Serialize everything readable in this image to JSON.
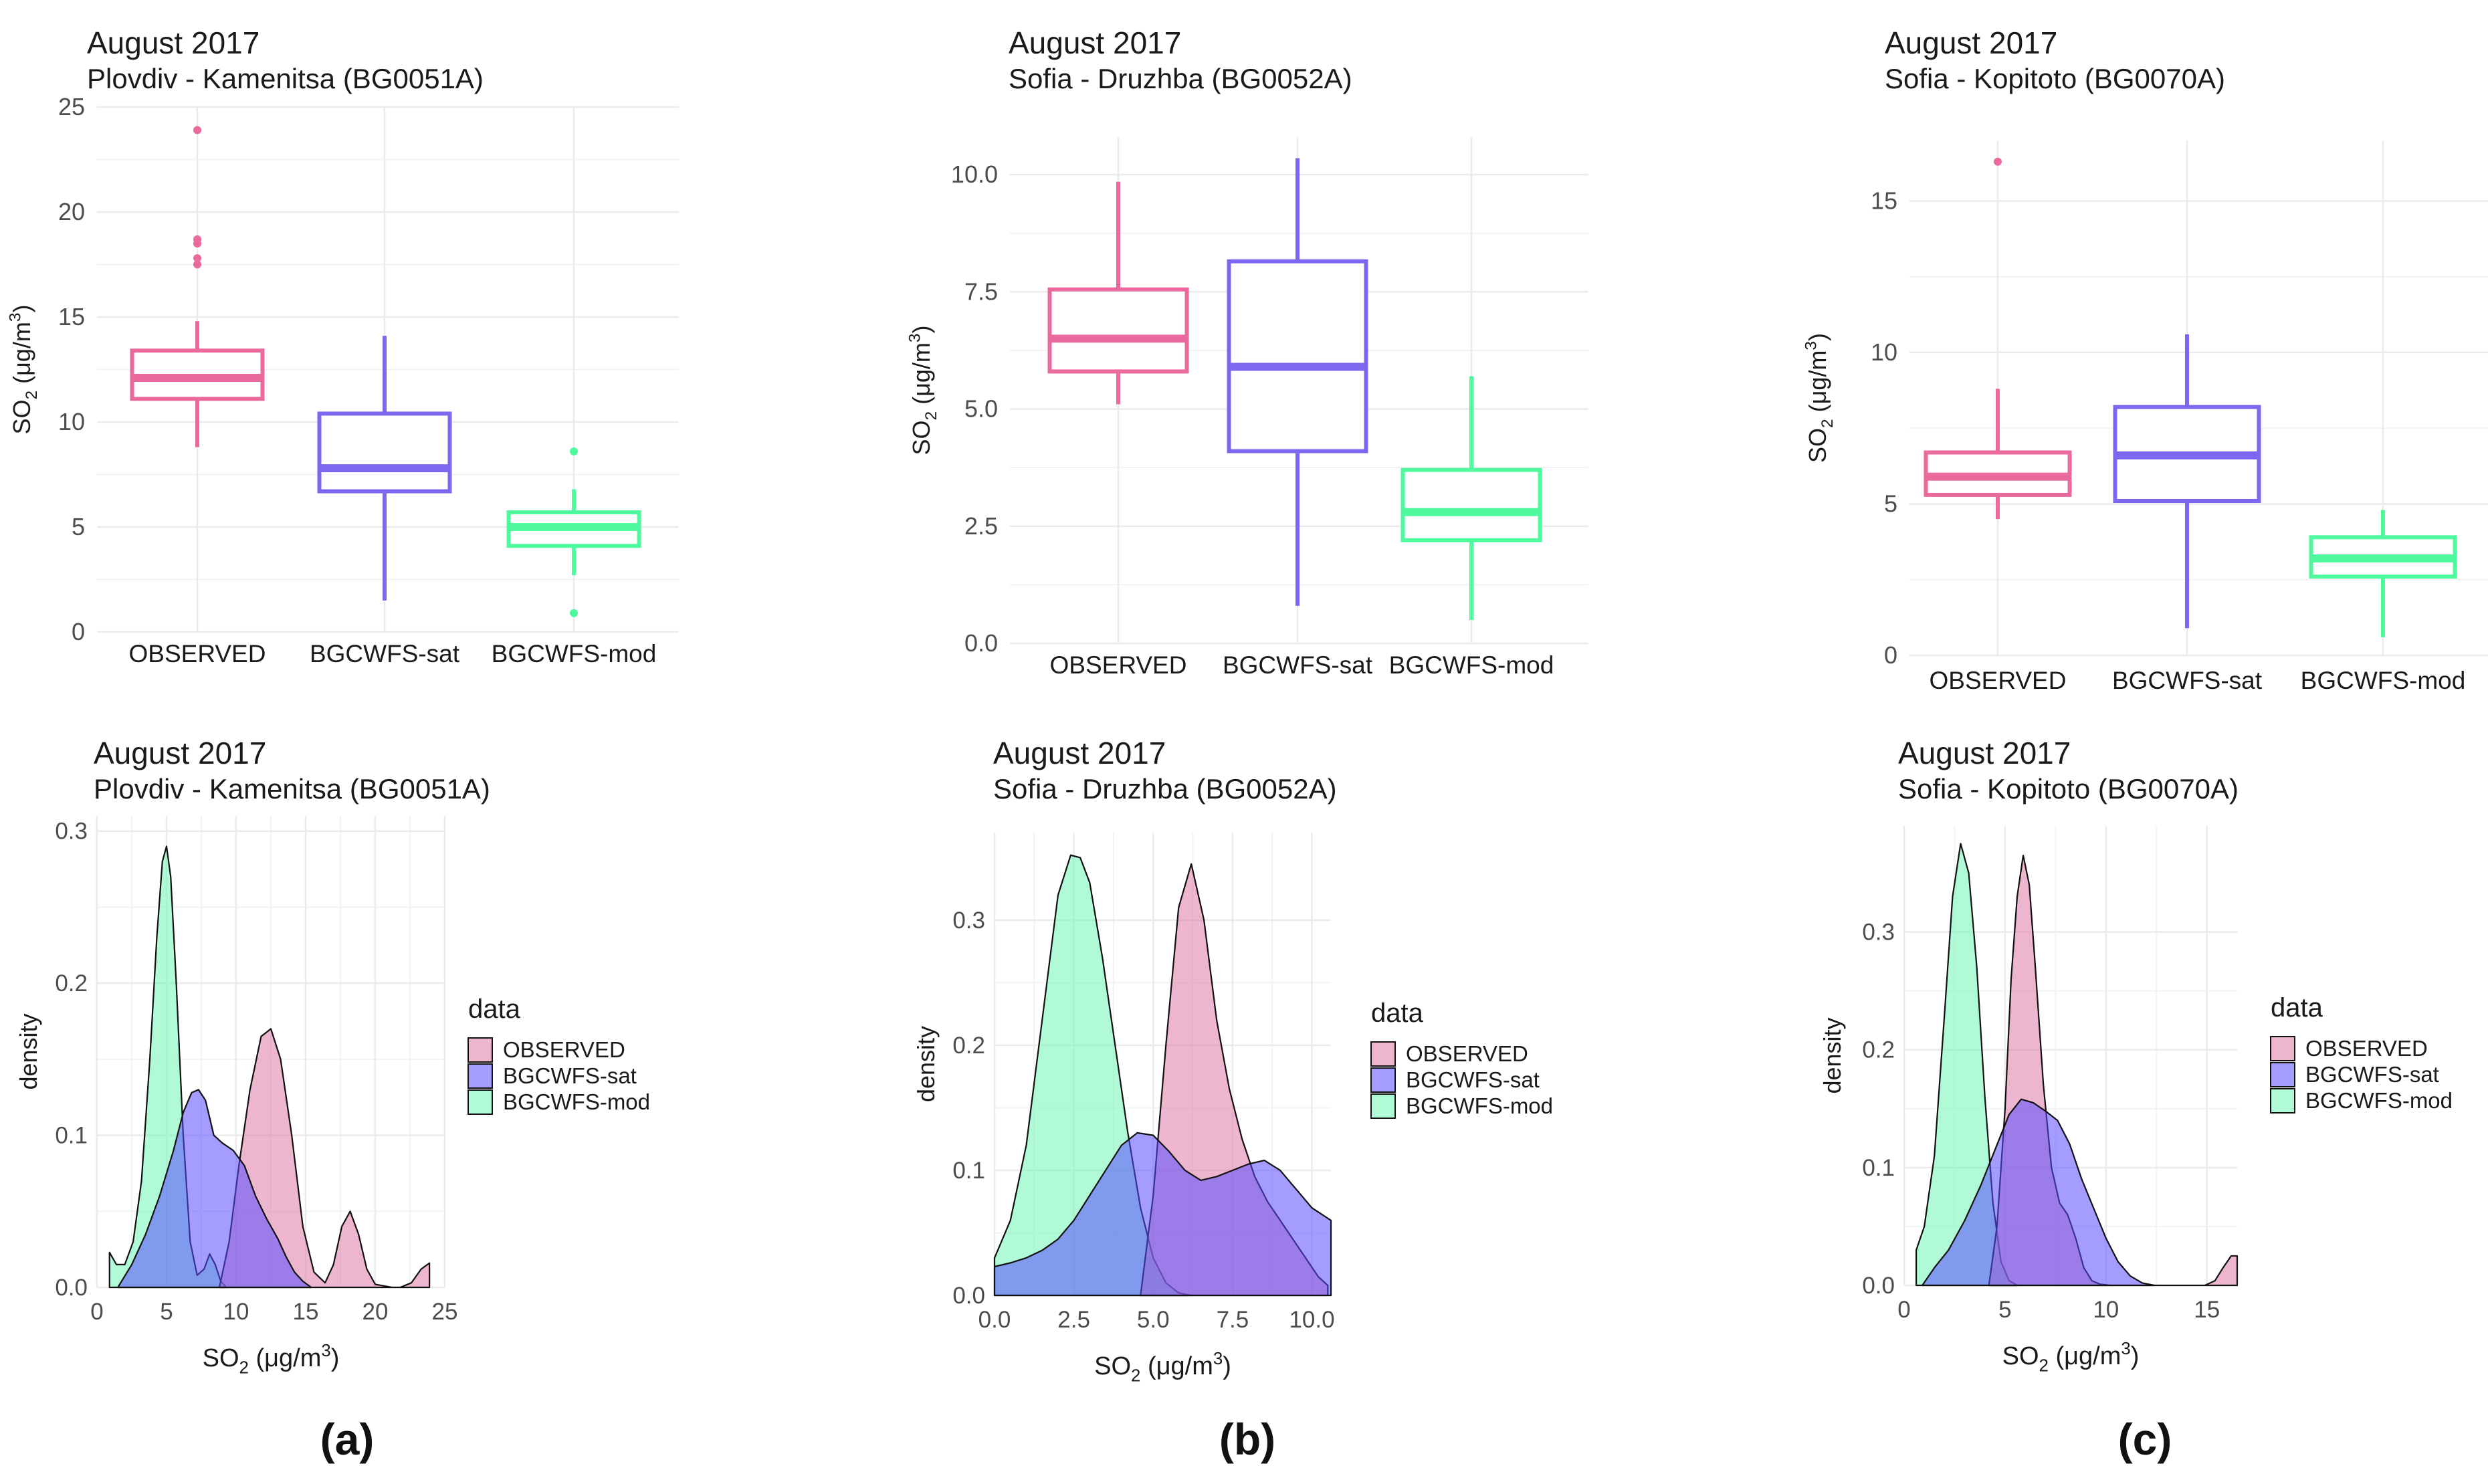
{
  "panel_labels": [
    "(a)",
    "(b)",
    "(c)"
  ],
  "colors": {
    "OBSERVED": "#EA6A9E",
    "BGCWFS-sat": "#7B68EE",
    "BGCWFS-mod": "#4FFA9E",
    "OBSERVED_fill": "#E07AA6",
    "BGCWFS-sat_fill": "#5A4DFF",
    "BGCWFS-mod_fill": "#6FF5B6",
    "grid": "#EBEBEB",
    "text": "#1A1A1A",
    "axis_text": "#4D4D4D"
  },
  "chart_data": [
    {
      "id": "box-a",
      "type": "box",
      "title": "August 2017",
      "subtitle": "Plovdiv - Kamenitsa (BG0051A)",
      "ylabel": "SO2 (μg/m3)",
      "xlabel": "",
      "ylim": [
        0,
        25
      ],
      "yticks": [
        0,
        5,
        10,
        15,
        20,
        25
      ],
      "ytick_labels": [
        "0",
        "5",
        "10",
        "15",
        "20",
        "25"
      ],
      "categories": [
        "OBSERVED",
        "BGCWFS-sat",
        "BGCWFS-mod"
      ],
      "boxes": [
        {
          "name": "OBSERVED",
          "lower": 8.8,
          "q1": 11.1,
          "median": 12.1,
          "q3": 13.4,
          "upper": 14.8,
          "outliers": [
            17.5,
            17.8,
            18.5,
            18.7,
            23.9
          ]
        },
        {
          "name": "BGCWFS-sat",
          "lower": 1.5,
          "q1": 6.7,
          "median": 7.8,
          "q3": 10.4,
          "upper": 14.1,
          "outliers": []
        },
        {
          "name": "BGCWFS-mod",
          "lower": 2.7,
          "q1": 4.1,
          "median": 5.0,
          "q3": 5.7,
          "upper": 6.8,
          "outliers": [
            0.9,
            8.6
          ]
        }
      ]
    },
    {
      "id": "box-b",
      "type": "box",
      "title": "August 2017",
      "subtitle": "Sofia - Druzhba (BG0052A)",
      "ylabel": "SO2 (μg/m3)",
      "xlabel": "",
      "ylim": [
        0,
        10.8
      ],
      "yticks": [
        0,
        2.5,
        5,
        7.5,
        10
      ],
      "ytick_labels": [
        "0.0",
        "2.5",
        "5.0",
        "7.5",
        "10.0"
      ],
      "categories": [
        "OBSERVED",
        "BGCWFS-sat",
        "BGCWFS-mod"
      ],
      "boxes": [
        {
          "name": "OBSERVED",
          "lower": 5.1,
          "q1": 5.8,
          "median": 6.5,
          "q3": 7.55,
          "upper": 9.85,
          "outliers": []
        },
        {
          "name": "BGCWFS-sat",
          "lower": 0.8,
          "q1": 4.1,
          "median": 5.9,
          "q3": 8.15,
          "upper": 10.35,
          "outliers": []
        },
        {
          "name": "BGCWFS-mod",
          "lower": 0.5,
          "q1": 2.2,
          "median": 2.8,
          "q3": 3.7,
          "upper": 5.7,
          "outliers": []
        }
      ]
    },
    {
      "id": "box-c",
      "type": "box",
      "title": "August 2017",
      "subtitle": "Sofia - Kopitoto (BG0070A)",
      "ylabel": "SO2 (μg/m3)",
      "xlabel": "",
      "ylim": [
        0,
        17
      ],
      "yticks": [
        0,
        5,
        10,
        15
      ],
      "ytick_labels": [
        "0",
        "5",
        "10",
        "15"
      ],
      "categories": [
        "OBSERVED",
        "BGCWFS-sat",
        "BGCWFS-mod"
      ],
      "boxes": [
        {
          "name": "OBSERVED",
          "lower": 4.5,
          "q1": 5.3,
          "median": 5.9,
          "q3": 6.7,
          "upper": 8.8,
          "outliers": [
            16.3
          ]
        },
        {
          "name": "BGCWFS-sat",
          "lower": 0.9,
          "q1": 5.1,
          "median": 6.6,
          "q3": 8.2,
          "upper": 10.6,
          "outliers": []
        },
        {
          "name": "BGCWFS-mod",
          "lower": 0.6,
          "q1": 2.6,
          "median": 3.2,
          "q3": 3.9,
          "upper": 4.8,
          "outliers": []
        }
      ]
    },
    {
      "id": "dens-a",
      "type": "area",
      "title": "August 2017",
      "subtitle": "Plovdiv - Kamenitsa (BG0051A)",
      "ylabel": "density",
      "xlabel": "SO2 (μg/m3)",
      "xlim": [
        0,
        25
      ],
      "xticks": [
        0,
        5,
        10,
        15,
        20,
        25
      ],
      "xtick_labels": [
        "0",
        "5",
        "10",
        "15",
        "20",
        "25"
      ],
      "ylim": [
        0,
        0.31
      ],
      "yticks": [
        0,
        0.1,
        0.2,
        0.3
      ],
      "ytick_labels": [
        "0.0",
        "0.1",
        "0.2",
        "0.3"
      ],
      "legend_title": "data",
      "series": [
        {
          "name": "OBSERVED",
          "x": [
            8.8,
            9.5,
            10.2,
            11.0,
            11.8,
            12.5,
            13.2,
            14.0,
            14.8,
            15.6,
            16.4,
            17.0,
            17.6,
            18.2,
            18.8,
            19.4,
            20.0,
            20.6,
            21.2,
            21.8,
            22.6,
            23.3,
            23.9
          ],
          "y": [
            0.0,
            0.03,
            0.08,
            0.13,
            0.165,
            0.17,
            0.15,
            0.1,
            0.04,
            0.01,
            0.003,
            0.015,
            0.04,
            0.05,
            0.035,
            0.012,
            0.002,
            0.001,
            0.0,
            0.0,
            0.003,
            0.012,
            0.016
          ]
        },
        {
          "name": "BGCWFS-sat",
          "x": [
            1.5,
            2.5,
            3.5,
            4.5,
            5.5,
            6.2,
            6.8,
            7.3,
            7.8,
            8.4,
            9.0,
            9.8,
            10.6,
            11.4,
            12.2,
            13.0,
            13.6,
            14.2,
            14.8,
            15.4
          ],
          "y": [
            0.0,
            0.015,
            0.035,
            0.06,
            0.09,
            0.115,
            0.128,
            0.13,
            0.123,
            0.1,
            0.095,
            0.09,
            0.08,
            0.06,
            0.045,
            0.032,
            0.02,
            0.01,
            0.004,
            0.0
          ]
        },
        {
          "name": "BGCWFS-mod",
          "x": [
            0.9,
            1.4,
            2.0,
            2.6,
            3.2,
            3.8,
            4.3,
            4.7,
            5.0,
            5.3,
            5.7,
            6.2,
            6.7,
            7.2,
            7.7,
            8.1,
            8.5,
            8.9,
            9.3
          ],
          "y": [
            0.023,
            0.015,
            0.015,
            0.03,
            0.07,
            0.15,
            0.23,
            0.28,
            0.29,
            0.27,
            0.2,
            0.1,
            0.03,
            0.008,
            0.012,
            0.022,
            0.015,
            0.004,
            0.0
          ]
        }
      ]
    },
    {
      "id": "dens-b",
      "type": "area",
      "title": "August 2017",
      "subtitle": "Sofia - Druzhba (BG0052A)",
      "ylabel": "density",
      "xlabel": "SO2 (μg/m3)",
      "xlim": [
        0,
        10.6
      ],
      "xticks": [
        0,
        2.5,
        5,
        7.5,
        10
      ],
      "xtick_labels": [
        "0.0",
        "2.5",
        "5.0",
        "7.5",
        "10.0"
      ],
      "ylim": [
        0,
        0.37
      ],
      "yticks": [
        0,
        0.1,
        0.2,
        0.3
      ],
      "ytick_labels": [
        "0.0",
        "0.1",
        "0.2",
        "0.3"
      ],
      "legend_title": "data",
      "series": [
        {
          "name": "OBSERVED",
          "x": [
            4.6,
            5.0,
            5.4,
            5.8,
            6.2,
            6.6,
            7.0,
            7.4,
            7.8,
            8.2,
            8.6,
            9.0,
            9.4,
            9.8,
            10.2,
            10.5
          ],
          "y": [
            0.0,
            0.08,
            0.2,
            0.31,
            0.345,
            0.3,
            0.22,
            0.165,
            0.125,
            0.095,
            0.075,
            0.06,
            0.045,
            0.03,
            0.015,
            0.008
          ]
        },
        {
          "name": "BGCWFS-sat",
          "x": [
            0.0,
            0.5,
            1.0,
            1.5,
            2.0,
            2.5,
            3.0,
            3.5,
            4.0,
            4.5,
            5.0,
            5.5,
            6.0,
            6.5,
            7.0,
            7.5,
            8.0,
            8.5,
            9.0,
            9.5,
            10.0,
            10.6
          ],
          "y": [
            0.023,
            0.026,
            0.03,
            0.036,
            0.045,
            0.06,
            0.08,
            0.1,
            0.12,
            0.13,
            0.128,
            0.115,
            0.1,
            0.092,
            0.095,
            0.1,
            0.105,
            0.108,
            0.1,
            0.085,
            0.07,
            0.06
          ]
        },
        {
          "name": "BGCWFS-mod",
          "x": [
            0.0,
            0.5,
            1.0,
            1.5,
            2.0,
            2.4,
            2.7,
            3.0,
            3.4,
            3.8,
            4.2,
            4.6,
            5.0,
            5.4,
            5.8,
            6.2
          ],
          "y": [
            0.03,
            0.06,
            0.12,
            0.22,
            0.32,
            0.352,
            0.35,
            0.33,
            0.27,
            0.2,
            0.13,
            0.07,
            0.03,
            0.01,
            0.002,
            0.0
          ]
        }
      ]
    },
    {
      "id": "dens-c",
      "type": "area",
      "title": "August 2017",
      "subtitle": "Sofia - Kopitoto (BG0070A)",
      "ylabel": "density",
      "xlabel": "SO2 (μg/m3)",
      "xlim": [
        0,
        16.5
      ],
      "xticks": [
        0,
        5,
        10,
        15
      ],
      "xtick_labels": [
        "0",
        "5",
        "10",
        "15"
      ],
      "ylim": [
        0,
        0.39
      ],
      "yticks": [
        0,
        0.1,
        0.2,
        0.3
      ],
      "ytick_labels": [
        "0.0",
        "0.1",
        "0.2",
        "0.3"
      ],
      "legend_title": "data",
      "series": [
        {
          "name": "OBSERVED",
          "x": [
            4.2,
            4.6,
            5.0,
            5.3,
            5.6,
            5.9,
            6.2,
            6.5,
            6.9,
            7.3,
            7.7,
            8.1,
            8.5,
            8.9,
            9.3,
            9.7,
            10.2,
            14.9,
            15.4,
            15.8,
            16.2,
            16.5
          ],
          "y": [
            0.0,
            0.05,
            0.15,
            0.26,
            0.33,
            0.365,
            0.34,
            0.27,
            0.17,
            0.1,
            0.07,
            0.06,
            0.04,
            0.015,
            0.004,
            0.001,
            0.0,
            0.0,
            0.004,
            0.015,
            0.025,
            0.025
          ]
        },
        {
          "name": "BGCWFS-sat",
          "x": [
            0.9,
            1.5,
            2.2,
            3.0,
            3.8,
            4.5,
            5.2,
            5.8,
            6.4,
            7.0,
            7.6,
            8.2,
            8.8,
            9.4,
            10.0,
            10.6,
            11.2,
            11.8,
            12.4
          ],
          "y": [
            0.0,
            0.015,
            0.03,
            0.055,
            0.085,
            0.115,
            0.145,
            0.158,
            0.155,
            0.148,
            0.14,
            0.12,
            0.09,
            0.065,
            0.04,
            0.02,
            0.008,
            0.002,
            0.0
          ]
        },
        {
          "name": "BGCWFS-mod",
          "x": [
            0.6,
            1.0,
            1.5,
            2.0,
            2.4,
            2.8,
            3.2,
            3.6,
            4.0,
            4.4,
            4.8,
            5.2,
            5.6
          ],
          "y": [
            0.03,
            0.05,
            0.11,
            0.23,
            0.33,
            0.375,
            0.35,
            0.27,
            0.16,
            0.07,
            0.02,
            0.004,
            0.0
          ]
        }
      ]
    }
  ]
}
